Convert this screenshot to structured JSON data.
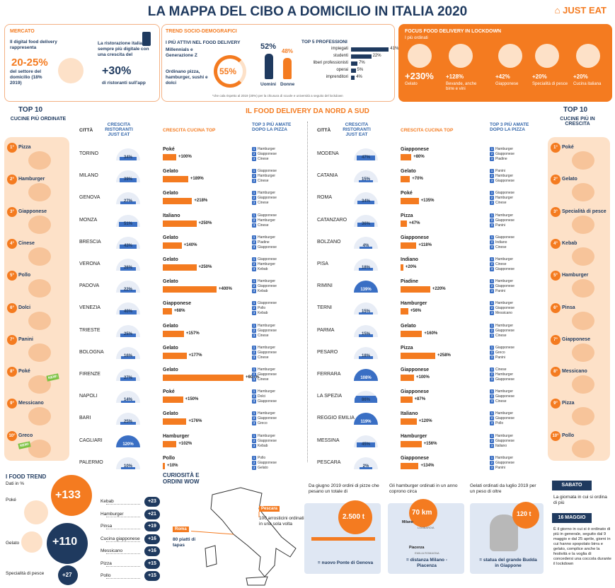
{
  "title": "LA MAPPA DEL CIBO A DOMICILIO IN ITALIA 2020",
  "logo": "JUST EAT",
  "mercato": {
    "label": "MERCATO",
    "text1": "Il digital food delivery rappresenta",
    "big": "20-25%",
    "text2": "del settore del domicilio (18% 2019)",
    "text3": "La ristorazione italiana sempre più digitale con una crescita del",
    "big2": "+30%",
    "text4": "di ristoranti sull'app"
  },
  "trend": {
    "label": "TREND SOCIO-DEMOGRAFICI",
    "sub": "I PIÙ ATTIVI NEL FOOD DELIVERY",
    "gen": "Millennials e Generazione Z",
    "pct": "55%",
    "order": "Ordinano pizza, hamburger, sushi e dolci",
    "men_pct": "52%",
    "women_pct": "48%",
    "men": "Uomini",
    "women": "Donne",
    "prof_title": "TOP 5 PROFESSIONI",
    "note": "*che cala rispetto al 2019 (30%) per la chiusura di scuole e università a seguito del lockdown",
    "professions": [
      {
        "name": "impiegati",
        "value": "41%",
        "v": 41
      },
      {
        "name": "studenti",
        "value": "22%",
        "v": 22
      },
      {
        "name": "liberi professionisti",
        "value": "7%",
        "v": 7
      },
      {
        "name": "operai",
        "value": "5%",
        "v": 5
      },
      {
        "name": "imprenditori",
        "value": "4%",
        "v": 4
      }
    ]
  },
  "lockdown": {
    "label": "FOCUS FOOD DELIVERY IN LOCKDOWN",
    "sub": "I più ordinati",
    "items": [
      {
        "value": "+230%",
        "name": "Gelato"
      },
      {
        "value": "+128%",
        "name": "Bevande, anche birre e vini"
      },
      {
        "value": "+42%",
        "name": "Giapponese"
      },
      {
        "value": "+20%",
        "name": "Specialità di pesce"
      },
      {
        "value": "+20%",
        "name": "Cucina italiana"
      }
    ]
  },
  "sections": {
    "top10_left": "TOP 10",
    "left_sub": "CUCINE PIÙ ORDINATE",
    "middle": "IL FOOD DELIVERY DA NORD A SUD",
    "top10_right": "TOP 10",
    "right_sub": "CUCINE PIÙ IN CRESCITA"
  },
  "headers": {
    "city": "CITTÀ",
    "growth": "CRESCITA RISTORANTI JUST EAT",
    "cuisine": "CRESCITA CUCINA TOP",
    "top3": "TOP 3 PIÙ AMATE DOPO LA PIZZA"
  },
  "left_rank": [
    "Pizza",
    "Hamburger",
    "Giapponese",
    "Cinese",
    "Pollo",
    "Dolci",
    "Panini",
    "Poké",
    "Messicano",
    "Greco"
  ],
  "right_rank": [
    "Poké",
    "Gelato",
    "Specialità di pesce",
    "Kebab",
    "Hamburger",
    "Pinsa",
    "Giapponese",
    "Messicano",
    "Pizza",
    "Pollo"
  ],
  "new_label": "NEW!",
  "cities_left": [
    {
      "city": "TORINO",
      "g": 34,
      "gl": "34%",
      "cuisine": "Poké",
      "c": 100,
      "cl": "+100%",
      "top3": [
        "Hamburger",
        "Giapponese",
        "Cinese"
      ]
    },
    {
      "city": "MILANO",
      "g": 39,
      "gl": "39%",
      "cuisine": "Gelato",
      "c": 189,
      "cl": "+189%",
      "top3": [
        "Giapponese",
        "Hamburger",
        "Cinese"
      ]
    },
    {
      "city": "GENOVA",
      "g": 27,
      "gl": "27%",
      "cuisine": "Gelato",
      "c": 218,
      "cl": "+218%",
      "top3": [
        "Hamburger",
        "Giapponese",
        "Cinese"
      ]
    },
    {
      "city": "MONZA",
      "g": 51,
      "gl": "51%",
      "cuisine": "Italiano",
      "c": 250,
      "cl": "+250%",
      "top3": [
        "Giapponese",
        "Hamburger",
        "Cinese"
      ]
    },
    {
      "city": "BRESCIA",
      "g": 43,
      "gl": "43%",
      "cuisine": "Gelato",
      "c": 140,
      "cl": "+140%",
      "top3": [
        "Hamburger",
        "Piadine",
        "Giapponese"
      ]
    },
    {
      "city": "VERONA",
      "g": 26,
      "gl": "26%",
      "cuisine": "Gelato",
      "c": 250,
      "cl": "+250%",
      "top3": [
        "Giapponese",
        "Hamburger",
        "Kebab"
      ]
    },
    {
      "city": "PADOVA",
      "g": 22,
      "gl": "22%",
      "cuisine": "Gelato",
      "c": 400,
      "cl": "+400%",
      "top3": [
        "Hamburger",
        "Giapponese",
        "Kebab"
      ]
    },
    {
      "city": "VENEZIA",
      "g": 40,
      "gl": "40%",
      "cuisine": "Giapponese",
      "c": 68,
      "cl": "+68%",
      "top3": [
        "Giapponese",
        "Pollo",
        "Kebab"
      ]
    },
    {
      "city": "TRIESTE",
      "g": 25,
      "gl": "25%",
      "cuisine": "Gelato",
      "c": 157,
      "cl": "+157%",
      "top3": [
        "Hamburger",
        "Giapponese",
        "Cinese"
      ]
    },
    {
      "city": "BOLOGNA",
      "g": 16,
      "gl": "16%",
      "cuisine": "Gelato",
      "c": 177,
      "cl": "+177%",
      "top3": [
        "Hamburger",
        "Giapponese",
        "Cinese"
      ]
    },
    {
      "city": "FIRENZE",
      "g": 27,
      "gl": "27%",
      "cuisine": "Gelato",
      "c": 600,
      "cl": "+600%",
      "top3": [
        "Hamburger",
        "Giapponese",
        "Cinese"
      ]
    },
    {
      "city": "NAPOLI",
      "g": 14,
      "gl": "14%",
      "cuisine": "Poké",
      "c": 150,
      "cl": "+150%",
      "top3": [
        "Hamburger",
        "Dolci",
        "Giapponese"
      ]
    },
    {
      "city": "BARI",
      "g": 25,
      "gl": "25%",
      "cuisine": "Gelato",
      "c": 176,
      "cl": "+176%",
      "top3": [
        "Hamburger",
        "Giapponese",
        "Greco"
      ]
    },
    {
      "city": "CAGLIARI",
      "g": 120,
      "gl": "120%",
      "cuisine": "Hamburger",
      "c": 102,
      "cl": "+102%",
      "top3": [
        "Hamburger",
        "Giapponese",
        "Kebab"
      ]
    },
    {
      "city": "PALERMO",
      "g": 10,
      "gl": "10%",
      "cuisine": "Pollo",
      "c": 10,
      "cl": "+10%",
      "top3": [
        "Pollo",
        "Giapponese",
        "Gelato"
      ]
    }
  ],
  "cities_right": [
    {
      "city": "MODENA",
      "g": 47,
      "gl": "47%",
      "cuisine": "Giapponese",
      "c": 80,
      "cl": "+80%",
      "top3": [
        "Hamburger",
        "Giapponese",
        "Piadine"
      ]
    },
    {
      "city": "CATANIA",
      "g": 15,
      "gl": "15%",
      "cuisine": "Gelato",
      "c": 70,
      "cl": "+70%",
      "top3": [
        "Panini",
        "Hamburger",
        "Giapponese"
      ]
    },
    {
      "city": "ROMA",
      "g": 34,
      "gl": "34%",
      "cuisine": "Poké",
      "c": 135,
      "cl": "+135%",
      "top3": [
        "Giapponese",
        "Hamburger",
        "Cinese"
      ]
    },
    {
      "city": "CATANZARO",
      "g": 36,
      "gl": "36%",
      "cuisine": "Pizza",
      "c": 47,
      "cl": "+47%",
      "top3": [
        "Hamburger",
        "Giapponese",
        "Panini"
      ]
    },
    {
      "city": "BOLZANO",
      "g": 4,
      "gl": "4%",
      "cuisine": "Giapponese",
      "c": 118,
      "cl": "+118%",
      "top3": [
        "Giapponese",
        "Indiano",
        "Cinese"
      ]
    },
    {
      "city": "PISA",
      "g": 18,
      "gl": "18%",
      "cuisine": "Indiano",
      "c": 20,
      "cl": "+20%",
      "top3": [
        "Hamburger",
        "Cinese",
        "Giapponese"
      ]
    },
    {
      "city": "RIMINI",
      "g": 139,
      "gl": "139%",
      "cuisine": "Piadine",
      "c": 220,
      "cl": "+220%",
      "top3": [
        "Hamburger",
        "Giapponese",
        "Panini"
      ]
    },
    {
      "city": "TERNI",
      "g": 15,
      "gl": "15%",
      "cuisine": "Hamburger",
      "c": 56,
      "cl": "+56%",
      "top3": [
        "Hamburger",
        "Giapponese",
        "Messicano"
      ]
    },
    {
      "city": "PARMA",
      "g": 15,
      "gl": "15%",
      "cuisine": "Gelato",
      "c": 160,
      "cl": "+160%",
      "top3": [
        "Hamburger",
        "Giapponese",
        "Cinese"
      ]
    },
    {
      "city": "PESARO",
      "g": 18,
      "gl": "18%",
      "cuisine": "Pizza",
      "c": 258,
      "cl": "+258%",
      "top3": [
        "Giapponese",
        "Greco",
        "Panini"
      ]
    },
    {
      "city": "FERRARA",
      "g": 108,
      "gl": "108%",
      "cuisine": "Giapponese",
      "c": 100,
      "cl": "+100%",
      "top3": [
        "Cinese",
        "Hamburger",
        "Giapponese"
      ]
    },
    {
      "city": "LA SPEZIA",
      "g": 86,
      "gl": "86%",
      "cuisine": "Giapponese",
      "c": 87,
      "cl": "+87%",
      "top3": [
        "Hamburger",
        "Giapponese",
        "Cinese"
      ]
    },
    {
      "city": "REGGIO EMILIA",
      "g": 119,
      "gl": "119%",
      "cuisine": "Italiano",
      "c": 120,
      "cl": "+120%",
      "top3": [
        "Hamburger",
        "Giapponese",
        "Pollo"
      ]
    },
    {
      "city": "MESSINA",
      "g": 45,
      "gl": "45%",
      "cuisine": "Hamburger",
      "c": 156,
      "cl": "+156%",
      "top3": [
        "Hamburger",
        "Giapponese",
        "Italiano"
      ]
    },
    {
      "city": "PESCARA",
      "g": 2,
      "gl": "2%",
      "cuisine": "Giapponese",
      "c": 134,
      "cl": "+134%",
      "top3": [
        "Hamburger",
        "Giapponese",
        "Panini"
      ]
    }
  ],
  "food_trend": {
    "title": "I FOOD TREND",
    "sub": "Dati in %",
    "poke": "Poké",
    "poke_v": "+133",
    "gelato": "Gelato",
    "gelato_v": "+110",
    "pesce": "Specialità di pesce",
    "pesce_v": "+27",
    "list": [
      {
        "name": "Kebab",
        "v": "+23"
      },
      {
        "name": "Hamburger",
        "v": "+21"
      },
      {
        "name": "Pinsa",
        "v": "+19"
      },
      {
        "name": "Cucina giapponese",
        "v": "+16"
      },
      {
        "name": "Messicano",
        "v": "+16"
      },
      {
        "name": "Pizza",
        "v": "+15"
      },
      {
        "name": "Pollo",
        "v": "+15"
      }
    ]
  },
  "curiosita": {
    "title": "CURIOSITÀ E ORDINI WOW",
    "roma": "Roma",
    "roma_text": "80 piatti di tapas",
    "pescara": "Pescara",
    "pescara_text": "100 arrosticini ordinati in una sola volta",
    "c1_text": "Da giugno 2019 ordini di pizze che pesano un totale di",
    "c1_v": "2.500 t",
    "c1_cap": "= nuovo Ponte di Genova",
    "c2_text": "Gli hamburger ordinati in un anno coprono circa",
    "c2_v": "70 km",
    "c2_cap": "= distanza Milano - Piacenza",
    "c2_m1": "Milano",
    "c2_m2": "Piacenza",
    "c2_m3": "LOMBARDIA",
    "c2_m4": "EMILIA ROMAGNA",
    "c3_text": "Gelati ordinati da luglio 2019 per un peso di oltre",
    "c3_v": "120 t",
    "c3_cap": "= statua del grande Budda in Giappone"
  },
  "sabato": {
    "label": "SABATO",
    "text": "La giornata in cui si ordina di più"
  },
  "maggio": {
    "label": "16 MAGGIO",
    "text": "È il giorno in cui si è ordinato di più in generale, seguito dal 9 maggio e dal 25 aprile, giorni in cui hanno spopolato birra e gelato, complice anche la festività e la voglia di concedersi una coccola durante il lockdown"
  }
}
